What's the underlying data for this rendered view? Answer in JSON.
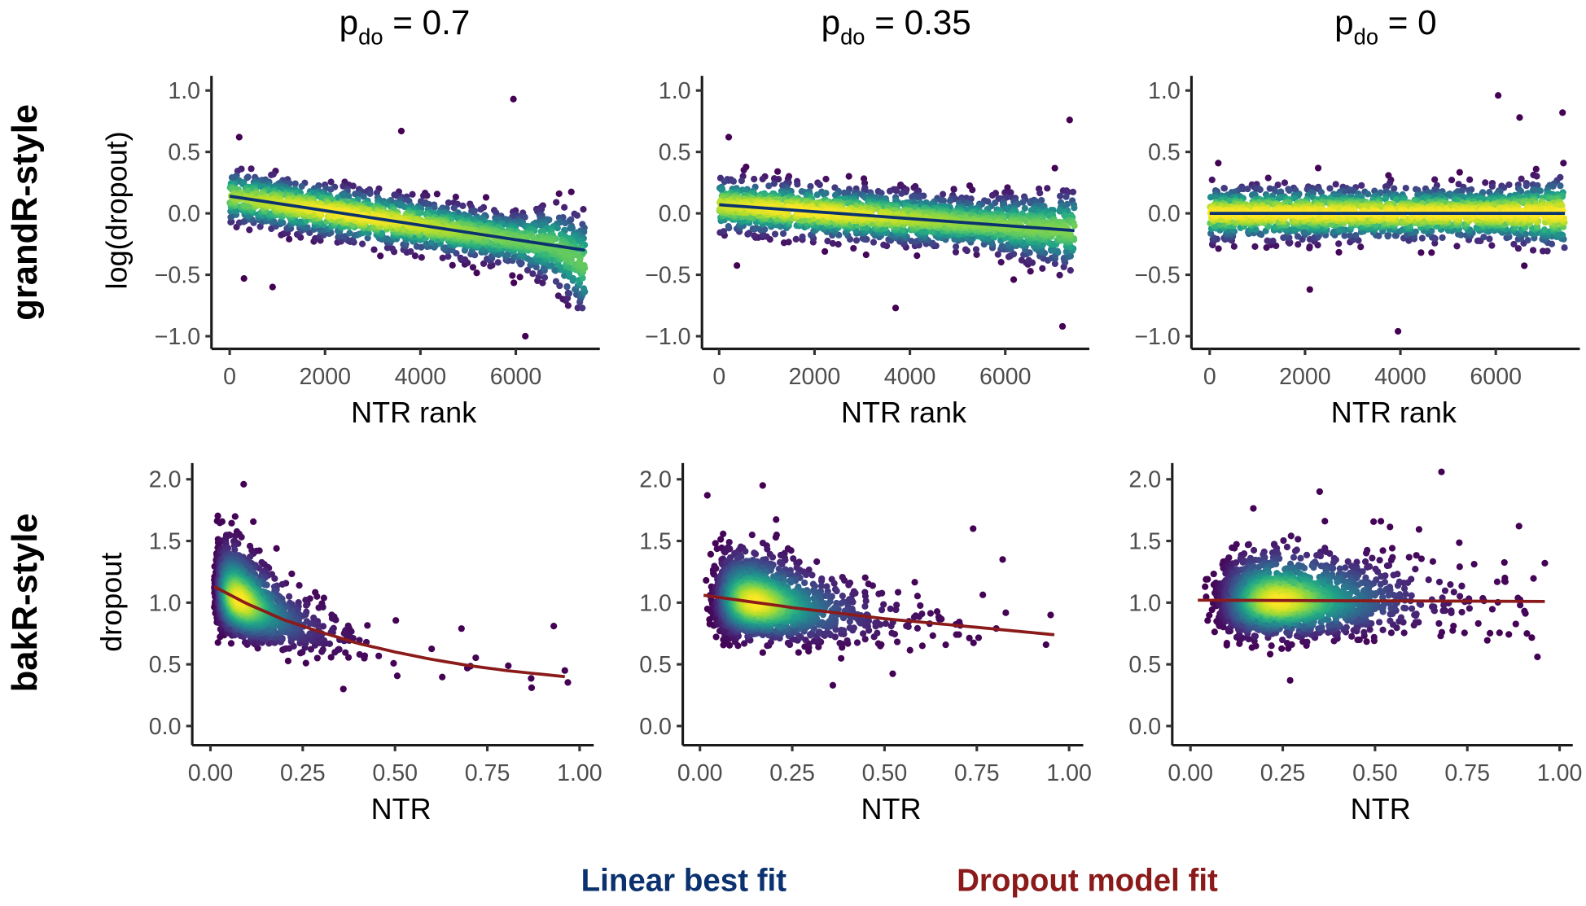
{
  "column_titles": [
    {
      "symbol": "p",
      "subscript": "do",
      "value": " = 0.7"
    },
    {
      "symbol": "p",
      "subscript": "do",
      "value": " = 0.35"
    },
    {
      "symbol": "p",
      "subscript": "do",
      "value": " = 0"
    }
  ],
  "row_labels": [
    "grandR-style",
    "bakR-style"
  ],
  "legend": {
    "linear": {
      "label": "Linear best fit",
      "color": "#0b326e"
    },
    "dropout": {
      "label": "Dropout model fit",
      "color": "#8b1a1a"
    }
  },
  "color_scale": "viridis (point density)",
  "chart_data": [
    {
      "type": "scatter",
      "row": "grandR-style",
      "column": "p_do = 0.7",
      "xlabel": "NTR rank",
      "ylabel": "log(dropout)",
      "xlim": [
        0,
        7450
      ],
      "ylim": [
        -1.05,
        1.1
      ],
      "xticks": [
        "0",
        "2000",
        "4000",
        "6000"
      ],
      "xtick_values": [
        0,
        2000,
        4000,
        6000
      ],
      "yticks": [
        "−1.0",
        "−0.5",
        "0.0",
        "0.5",
        "1.0"
      ],
      "ytick_values": [
        -1,
        -0.5,
        0,
        0.5,
        1
      ],
      "fit": {
        "kind": "linear",
        "x": [
          0,
          7450
        ],
        "y": [
          0.14,
          -0.3
        ]
      },
      "outliers": [
        [
          5950,
          0.93
        ],
        [
          3600,
          0.67
        ],
        [
          200,
          0.62
        ],
        [
          300,
          -0.53
        ],
        [
          900,
          -0.6
        ],
        [
          6200,
          -1.0
        ]
      ]
    },
    {
      "type": "scatter",
      "row": "grandR-style",
      "column": "p_do = 0.35",
      "xlabel": "NTR rank",
      "ylabel": "",
      "xlim": [
        0,
        7450
      ],
      "ylim": [
        -1.05,
        1.1
      ],
      "xticks": [
        "0",
        "2000",
        "4000",
        "6000"
      ],
      "xtick_values": [
        0,
        2000,
        4000,
        6000
      ],
      "yticks": [
        "−1.0",
        "−0.5",
        "0.0",
        "0.5",
        "1.0"
      ],
      "ytick_values": [
        -1,
        -0.5,
        0,
        0.5,
        1
      ],
      "fit": {
        "kind": "linear",
        "x": [
          0,
          7450
        ],
        "y": [
          0.07,
          -0.14
        ]
      },
      "outliers": [
        [
          7350,
          0.76
        ],
        [
          3700,
          -0.77
        ],
        [
          200,
          0.62
        ],
        [
          7200,
          -0.92
        ]
      ]
    },
    {
      "type": "scatter",
      "row": "grandR-style",
      "column": "p_do = 0",
      "xlabel": "NTR rank",
      "ylabel": "",
      "xlim": [
        0,
        7450
      ],
      "ylim": [
        -1.05,
        1.1
      ],
      "xticks": [
        "0",
        "2000",
        "4000",
        "6000"
      ],
      "xtick_values": [
        0,
        2000,
        4000,
        6000
      ],
      "yticks": [
        "−1.0",
        "−0.5",
        "0.0",
        "0.5",
        "1.0"
      ],
      "ytick_values": [
        -1,
        -0.5,
        0,
        0.5,
        1
      ],
      "fit": {
        "kind": "linear",
        "x": [
          0,
          7450
        ],
        "y": [
          0.0,
          0.0
        ]
      },
      "outliers": [
        [
          6050,
          0.96
        ],
        [
          3950,
          -0.96
        ],
        [
          6500,
          0.78
        ],
        [
          7400,
          0.82
        ],
        [
          2100,
          -0.62
        ]
      ]
    },
    {
      "type": "scatter",
      "row": "bakR-style",
      "column": "p_do = 0.7",
      "xlabel": "NTR",
      "ylabel": "dropout",
      "xlim": [
        0,
        1
      ],
      "ylim": [
        0,
        2.1
      ],
      "xticks": [
        "0.00",
        "0.25",
        "0.50",
        "0.75",
        "1.00"
      ],
      "xtick_values": [
        0,
        0.25,
        0.5,
        0.75,
        1
      ],
      "yticks": [
        "0.0",
        "0.5",
        "1.0",
        "1.5",
        "2.0"
      ],
      "ytick_values": [
        0,
        0.5,
        1,
        1.5,
        2
      ],
      "fit": {
        "kind": "dropout model",
        "x": [
          0.01,
          0.1,
          0.2,
          0.3,
          0.4,
          0.5,
          0.6,
          0.7,
          0.8,
          0.96
        ],
        "y": [
          1.13,
          0.99,
          0.86,
          0.76,
          0.67,
          0.6,
          0.54,
          0.49,
          0.45,
          0.4
        ]
      },
      "outliers": [
        [
          0.09,
          1.96
        ],
        [
          0.96,
          0.45
        ],
        [
          0.93,
          0.81
        ],
        [
          0.36,
          0.3
        ],
        [
          0.87,
          0.31
        ],
        [
          0.68,
          0.79
        ]
      ]
    },
    {
      "type": "scatter",
      "row": "bakR-style",
      "column": "p_do = 0.35",
      "xlabel": "NTR",
      "ylabel": "",
      "xlim": [
        0,
        1
      ],
      "ylim": [
        0,
        2.1
      ],
      "xticks": [
        "0.00",
        "0.25",
        "0.50",
        "0.75",
        "1.00"
      ],
      "xtick_values": [
        0,
        0.25,
        0.5,
        0.75,
        1
      ],
      "yticks": [
        "0.0",
        "0.5",
        "1.0",
        "1.5",
        "2.0"
      ],
      "ytick_values": [
        0,
        0.5,
        1,
        1.5,
        2
      ],
      "fit": {
        "kind": "dropout model",
        "x": [
          0.01,
          0.25,
          0.5,
          0.75,
          0.96
        ],
        "y": [
          1.06,
          0.96,
          0.87,
          0.8,
          0.74
        ]
      },
      "outliers": [
        [
          0.02,
          1.87
        ],
        [
          0.17,
          1.95
        ],
        [
          0.36,
          0.33
        ],
        [
          0.95,
          0.9
        ],
        [
          0.74,
          1.6
        ],
        [
          0.82,
          1.35
        ]
      ]
    },
    {
      "type": "scatter",
      "row": "bakR-style",
      "column": "p_do = 0",
      "xlabel": "NTR",
      "ylabel": "",
      "xlim": [
        0,
        1
      ],
      "ylim": [
        0,
        2.1
      ],
      "xticks": [
        "0.00",
        "0.25",
        "0.50",
        "0.75",
        "1.00"
      ],
      "xtick_values": [
        0,
        0.25,
        0.5,
        0.75,
        1
      ],
      "yticks": [
        "0.0",
        "0.5",
        "1.0",
        "1.5",
        "2.0"
      ],
      "ytick_values": [
        0,
        0.5,
        1,
        1.5,
        2
      ],
      "fit": {
        "kind": "dropout model",
        "x": [
          0.02,
          0.96
        ],
        "y": [
          1.02,
          1.01
        ]
      },
      "outliers": [
        [
          0.68,
          2.06
        ],
        [
          0.27,
          0.37
        ],
        [
          0.35,
          1.9
        ],
        [
          0.94,
          0.56
        ],
        [
          0.96,
          1.32
        ],
        [
          0.89,
          1.62
        ]
      ]
    }
  ]
}
